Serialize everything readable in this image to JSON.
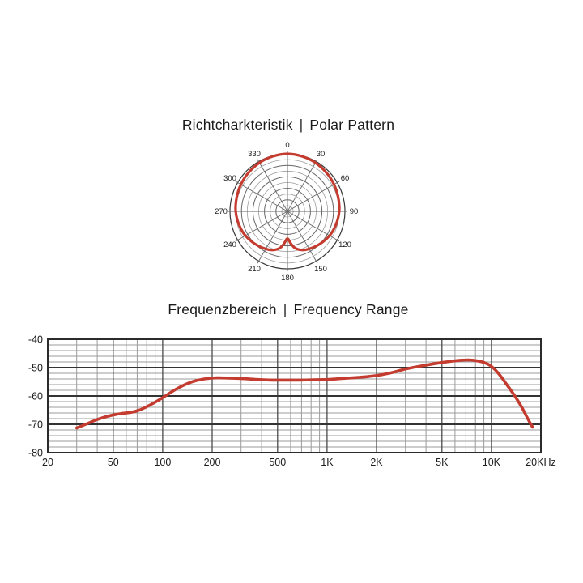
{
  "polar": {
    "title_de": "Richtcharkteristik",
    "separator": "|",
    "title_en": "Polar Pattern"
  },
  "freq": {
    "title_de": "Frequenzbereich",
    "separator": "|",
    "title_en": "Frequency Range"
  },
  "colors": {
    "curve": "#c43b2f",
    "grid_minor": "#9b9b9b",
    "grid_labeled": "#4a4a4a",
    "grid_major": "#333333",
    "border": "#2b2b2b",
    "text": "#1c1c1c",
    "ring_light": "#9e9e9e",
    "ring_mid": "#666666",
    "ring_outer": "#383838",
    "radial": "#666666"
  },
  "chart_data": [
    {
      "type": "polar",
      "title": "Richtcharkteristik | Polar Pattern",
      "angle_tick_labels": [
        "0",
        "30",
        "60",
        "90",
        "120",
        "150",
        "180",
        "210",
        "240",
        "270",
        "300",
        "330"
      ],
      "angle_tick_step_deg": 30,
      "rings": 10,
      "radial_line_step_deg": 30,
      "series_color": "#c43b2f",
      "pattern_points": [
        [
          0,
          1.0
        ],
        [
          15,
          0.99
        ],
        [
          30,
          0.975
        ],
        [
          45,
          0.955
        ],
        [
          60,
          0.935
        ],
        [
          75,
          0.915
        ],
        [
          90,
          0.9
        ],
        [
          105,
          0.875
        ],
        [
          120,
          0.845
        ],
        [
          135,
          0.8
        ],
        [
          150,
          0.755
        ],
        [
          160,
          0.715
        ],
        [
          168,
          0.655
        ],
        [
          174,
          0.565
        ],
        [
          180,
          0.475
        ],
        [
          186,
          0.565
        ],
        [
          192,
          0.655
        ],
        [
          200,
          0.715
        ],
        [
          210,
          0.755
        ],
        [
          225,
          0.8
        ],
        [
          240,
          0.845
        ],
        [
          255,
          0.875
        ],
        [
          270,
          0.9
        ],
        [
          285,
          0.915
        ],
        [
          300,
          0.935
        ],
        [
          315,
          0.955
        ],
        [
          330,
          0.975
        ],
        [
          345,
          0.99
        ]
      ]
    },
    {
      "type": "line",
      "title": "Frequenzbereich | Frequency Range",
      "x_scale": "log",
      "xlim": [
        20,
        20000
      ],
      "ylim": [
        -80,
        -40
      ],
      "grid": true,
      "y_ticks": [
        -40,
        -50,
        -60,
        -70,
        -80
      ],
      "y_tick_labels": [
        "-40",
        "-50",
        "-60",
        "-70",
        "-80"
      ],
      "y_minor_step_db": 2,
      "x_ticks": [
        {
          "f": 20,
          "label": "20"
        },
        {
          "f": 50,
          "label": "50"
        },
        {
          "f": 100,
          "label": "100"
        },
        {
          "f": 200,
          "label": "200"
        },
        {
          "f": 500,
          "label": "500"
        },
        {
          "f": 1000,
          "label": "1K"
        },
        {
          "f": 2000,
          "label": "2K"
        },
        {
          "f": 5000,
          "label": "5K"
        },
        {
          "f": 10000,
          "label": "10K"
        },
        {
          "f": 20000,
          "label": "20KHz"
        }
      ],
      "x_labeled_lines": [
        50,
        100,
        200,
        500,
        1000,
        2000,
        5000,
        10000
      ],
      "x_minor_lines": [
        30,
        40,
        60,
        70,
        80,
        90,
        300,
        400,
        600,
        700,
        800,
        900,
        3000,
        4000,
        6000,
        7000,
        8000,
        9000
      ],
      "series_color": "#c43b2f",
      "points": [
        [
          30,
          -71.3
        ],
        [
          34,
          -70.0
        ],
        [
          40,
          -68.3
        ],
        [
          46,
          -67.2
        ],
        [
          52,
          -66.5
        ],
        [
          58,
          -66.1
        ],
        [
          65,
          -65.7
        ],
        [
          72,
          -65.0
        ],
        [
          80,
          -63.8
        ],
        [
          90,
          -62.2
        ],
        [
          100,
          -60.6
        ],
        [
          113,
          -58.6
        ],
        [
          127,
          -56.9
        ],
        [
          143,
          -55.5
        ],
        [
          162,
          -54.5
        ],
        [
          185,
          -53.9
        ],
        [
          215,
          -53.6
        ],
        [
          255,
          -53.7
        ],
        [
          310,
          -53.9
        ],
        [
          380,
          -54.2
        ],
        [
          460,
          -54.4
        ],
        [
          560,
          -54.4
        ],
        [
          680,
          -54.4
        ],
        [
          820,
          -54.3
        ],
        [
          1000,
          -54.2
        ],
        [
          1200,
          -53.9
        ],
        [
          1500,
          -53.5
        ],
        [
          1800,
          -53.1
        ],
        [
          2100,
          -52.6
        ],
        [
          2500,
          -51.7
        ],
        [
          3000,
          -50.5
        ],
        [
          3600,
          -49.6
        ],
        [
          4300,
          -48.8
        ],
        [
          5000,
          -48.2
        ],
        [
          5800,
          -47.7
        ],
        [
          6500,
          -47.4
        ],
        [
          7200,
          -47.3
        ],
        [
          8000,
          -47.5
        ],
        [
          8800,
          -48.0
        ],
        [
          9600,
          -48.9
        ],
        [
          10300,
          -50.2
        ],
        [
          11200,
          -52.5
        ],
        [
          12300,
          -55.7
        ],
        [
          13800,
          -59.8
        ],
        [
          15300,
          -64.0
        ],
        [
          16700,
          -68.2
        ],
        [
          17800,
          -71.0
        ]
      ]
    }
  ]
}
